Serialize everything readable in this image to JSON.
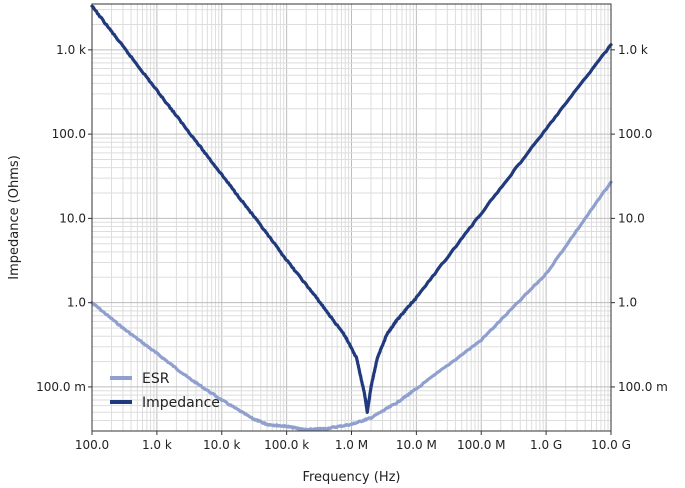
{
  "chart_data": {
    "type": "line",
    "x_scale": "log",
    "y_scale": "log",
    "xlabel": "Frequency (Hz)",
    "ylabel": "Impedance (Ohms)",
    "xlim": [
      100,
      10000000000
    ],
    "ylim": [
      0.03,
      3500
    ],
    "grid": true,
    "legend_position": "bottom-left",
    "x_tick_values": [
      100,
      1000,
      10000,
      100000,
      1000000,
      10000000,
      100000000,
      1000000000,
      10000000000
    ],
    "x_tick_labels": [
      "100.0",
      "1.0 k",
      "10.0 k",
      "100.0 k",
      "1.0 M",
      "10.0 M",
      "100.0 M",
      "1.0 G",
      "10.0 G"
    ],
    "y_tick_values": [
      0.1,
      1,
      10,
      100,
      1000
    ],
    "y_tick_labels": [
      "100.0 m",
      "1.0",
      "10.0",
      "100.0",
      "1.0 k"
    ],
    "series": [
      {
        "name": "ESR",
        "color": "#8fa0cf",
        "x": [
          100,
          300,
          1000,
          3000,
          10000,
          30000,
          50000,
          100000,
          200000,
          400000,
          1000000,
          2000000,
          5000000,
          10000000,
          100000000,
          1000000000,
          10000000000
        ],
        "y": [
          1.0,
          0.5,
          0.25,
          0.13,
          0.07,
          0.042,
          0.036,
          0.034,
          0.031,
          0.032,
          0.036,
          0.043,
          0.065,
          0.095,
          0.36,
          2.2,
          27
        ]
      },
      {
        "name": "Impedance",
        "color": "#213a7d",
        "x": [
          100,
          300,
          1000,
          3000,
          10000,
          30000,
          100000,
          300000,
          800000,
          1200000,
          1600000,
          1750000,
          2000000,
          2500000,
          3500000,
          5000000,
          10000000,
          100000000,
          1000000000,
          10000000000
        ],
        "y": [
          3300,
          1100,
          330,
          110,
          33,
          11,
          3.2,
          1.1,
          0.4,
          0.22,
          0.08,
          0.05,
          0.1,
          0.22,
          0.42,
          0.62,
          1.15,
          11.5,
          115,
          1150
        ]
      }
    ]
  }
}
